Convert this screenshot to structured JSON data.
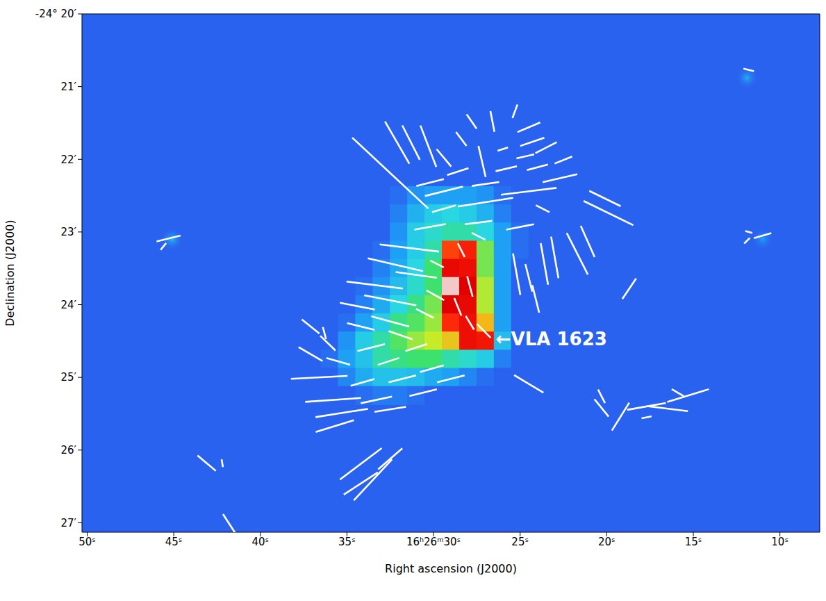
{
  "chart_data": {
    "type": "polarization_map",
    "x_label": "Right ascension (J2000)",
    "y_label": "Declination (J2000)",
    "xlim": [
      50.3,
      7.7
    ],
    "xticks": [
      {
        "value": 50,
        "label": "50ˢ"
      },
      {
        "value": 45,
        "label": "45ˢ"
      },
      {
        "value": 40,
        "label": "40ˢ"
      },
      {
        "value": 35,
        "label": "35ˢ"
      },
      {
        "value": 30,
        "label": "16ʰ26ᵐ30ˢ"
      },
      {
        "value": 25,
        "label": "25ˢ"
      },
      {
        "value": 20,
        "label": "20ˢ"
      },
      {
        "value": 15,
        "label": "15ˢ"
      },
      {
        "value": 10,
        "label": "10ˢ"
      }
    ],
    "ylim": [
      27.13,
      20
    ],
    "yticks": [
      {
        "value": 20,
        "label": "-24° 20′"
      },
      {
        "value": 21,
        "label": "21′"
      },
      {
        "value": 22,
        "label": "22′"
      },
      {
        "value": 23,
        "label": "23′"
      },
      {
        "value": 24,
        "label": "24′"
      },
      {
        "value": 25,
        "label": "25′"
      },
      {
        "value": 26,
        "label": "26′"
      },
      {
        "value": 27,
        "label": "27′"
      }
    ],
    "map": {
      "background": 0.2,
      "ra": [
        36,
        35,
        34,
        33,
        32,
        31,
        30,
        29,
        28,
        27,
        26,
        25,
        24,
        23,
        22
      ],
      "dec": [
        22.5,
        22.75,
        23.0,
        23.25,
        23.5,
        23.75,
        24.0,
        24.25,
        24.5,
        24.75,
        25.0,
        25.25
      ],
      "levels": [
        [
          0.2,
          0.2,
          0.2,
          0.2,
          0.22,
          0.28,
          0.3,
          0.3,
          0.3,
          0.28,
          0.22,
          0.2,
          0.2,
          0.2,
          0.2
        ],
        [
          0.2,
          0.2,
          0.2,
          0.2,
          0.25,
          0.33,
          0.38,
          0.4,
          0.38,
          0.33,
          0.25,
          0.2,
          0.2,
          0.2,
          0.2
        ],
        [
          0.2,
          0.2,
          0.2,
          0.2,
          0.28,
          0.38,
          0.42,
          0.45,
          0.45,
          0.4,
          0.3,
          0.22,
          0.2,
          0.2,
          0.2
        ],
        [
          0.2,
          0.2,
          0.2,
          0.22,
          0.3,
          0.38,
          0.45,
          0.8,
          0.85,
          0.55,
          0.3,
          0.22,
          0.2,
          0.2,
          0.2
        ],
        [
          0.2,
          0.2,
          0.2,
          0.25,
          0.32,
          0.4,
          0.5,
          0.92,
          0.9,
          0.55,
          0.3,
          0.2,
          0.2,
          0.2,
          0.2
        ],
        [
          0.2,
          0.2,
          0.22,
          0.28,
          0.35,
          0.42,
          0.5,
          1.0,
          0.95,
          0.6,
          0.3,
          0.2,
          0.2,
          0.2,
          0.2
        ],
        [
          0.2,
          0.2,
          0.25,
          0.32,
          0.4,
          0.48,
          0.55,
          0.95,
          0.92,
          0.6,
          0.3,
          0.2,
          0.2,
          0.2,
          0.2
        ],
        [
          0.2,
          0.22,
          0.3,
          0.38,
          0.48,
          0.52,
          0.58,
          0.82,
          0.9,
          0.7,
          0.3,
          0.2,
          0.2,
          0.2,
          0.2
        ],
        [
          0.2,
          0.28,
          0.38,
          0.45,
          0.52,
          0.58,
          0.62,
          0.68,
          0.9,
          0.88,
          0.35,
          0.2,
          0.2,
          0.2,
          0.2
        ],
        [
          0.22,
          0.3,
          0.36,
          0.45,
          0.48,
          0.5,
          0.5,
          0.45,
          0.42,
          0.38,
          0.25,
          0.2,
          0.2,
          0.2,
          0.2
        ],
        [
          0.2,
          0.26,
          0.32,
          0.36,
          0.36,
          0.35,
          0.32,
          0.3,
          0.26,
          0.22,
          0.2,
          0.2,
          0.2,
          0.2,
          0.2
        ],
        [
          0.2,
          0.2,
          0.22,
          0.24,
          0.24,
          0.22,
          0.2,
          0.2,
          0.2,
          0.2,
          0.2,
          0.2,
          0.2,
          0.2,
          0.2
        ]
      ]
    },
    "sources": [
      {
        "ra": 45.1,
        "dec": 23.1,
        "level": 0.35
      },
      {
        "ra": 11.9,
        "dec": 20.88,
        "level": 0.33
      },
      {
        "ra": 11.0,
        "dec": 23.1,
        "level": 0.3
      }
    ],
    "vectors": [
      {
        "ra": 32.5,
        "dec": 22.19,
        "angle": -43,
        "length": 1.43
      },
      {
        "ra": 32.1,
        "dec": 21.77,
        "angle": -60,
        "length": 0.67
      },
      {
        "ra": 31.3,
        "dec": 21.77,
        "angle": -63,
        "length": 0.53
      },
      {
        "ra": 30.3,
        "dec": 21.82,
        "angle": -69,
        "length": 0.61
      },
      {
        "ra": 29.4,
        "dec": 21.98,
        "angle": -50,
        "length": 0.31
      },
      {
        "ra": 28.4,
        "dec": 21.72,
        "angle": -53,
        "length": 0.24
      },
      {
        "ra": 27.8,
        "dec": 21.48,
        "angle": -55,
        "length": 0.24
      },
      {
        "ra": 27.2,
        "dec": 22.03,
        "angle": -77,
        "length": 0.44
      },
      {
        "ra": 26.6,
        "dec": 21.48,
        "angle": -79,
        "length": 0.29
      },
      {
        "ra": 25.3,
        "dec": 21.34,
        "angle": 70,
        "length": 0.2
      },
      {
        "ra": 24.5,
        "dec": 21.56,
        "angle": 23,
        "length": 0.34
      },
      {
        "ra": 24.3,
        "dec": 21.76,
        "angle": 19,
        "length": 0.35
      },
      {
        "ra": 23.5,
        "dec": 21.84,
        "angle": 27,
        "length": 0.33
      },
      {
        "ra": 24.7,
        "dec": 21.96,
        "angle": 13,
        "length": 0.25
      },
      {
        "ra": 26.0,
        "dec": 21.86,
        "angle": 18,
        "length": 0.15
      },
      {
        "ra": 28.6,
        "dec": 22.17,
        "angle": 18,
        "length": 0.31
      },
      {
        "ra": 25.8,
        "dec": 22.13,
        "angle": 13,
        "length": 0.3
      },
      {
        "ra": 24.0,
        "dec": 22.11,
        "angle": 15,
        "length": 0.3
      },
      {
        "ra": 22.5,
        "dec": 22.01,
        "angle": 22,
        "length": 0.26
      },
      {
        "ra": 22.7,
        "dec": 22.26,
        "angle": 13,
        "length": 0.49
      },
      {
        "ra": 20.1,
        "dec": 22.54,
        "angle": -26,
        "length": 0.48
      },
      {
        "ra": 19.9,
        "dec": 22.74,
        "angle": -26,
        "length": 0.76
      },
      {
        "ra": 27.0,
        "dec": 22.34,
        "angle": 8,
        "length": 0.38
      },
      {
        "ra": 24.5,
        "dec": 22.44,
        "angle": 7,
        "length": 0.77
      },
      {
        "ra": 29.4,
        "dec": 22.44,
        "angle": 14,
        "length": 0.54
      },
      {
        "ra": 30.2,
        "dec": 22.32,
        "angle": 14,
        "length": 0.39
      },
      {
        "ra": 27.0,
        "dec": 22.59,
        "angle": 9,
        "length": 0.77
      },
      {
        "ra": 29.4,
        "dec": 22.68,
        "angle": 16,
        "length": 0.34
      },
      {
        "ra": 23.7,
        "dec": 22.68,
        "angle": -27,
        "length": 0.21
      },
      {
        "ra": 30.2,
        "dec": 22.93,
        "angle": 10,
        "length": 0.44
      },
      {
        "ra": 27.4,
        "dec": 22.87,
        "angle": 7,
        "length": 0.38
      },
      {
        "ra": 25.0,
        "dec": 22.93,
        "angle": 11,
        "length": 0.39
      },
      {
        "ra": 23.6,
        "dec": 23.44,
        "angle": -80,
        "length": 0.58
      },
      {
        "ra": 23.0,
        "dec": 23.35,
        "angle": -80,
        "length": 0.58
      },
      {
        "ra": 21.7,
        "dec": 23.3,
        "angle": -63,
        "length": 0.64
      },
      {
        "ra": 21.1,
        "dec": 23.13,
        "angle": -66,
        "length": 0.47
      },
      {
        "ra": 24.5,
        "dec": 23.63,
        "angle": -76,
        "length": 0.39
      },
      {
        "ra": 24.1,
        "dec": 23.92,
        "angle": -76,
        "length": 0.39
      },
      {
        "ra": 25.2,
        "dec": 23.58,
        "angle": -80,
        "length": 0.58
      },
      {
        "ra": 18.7,
        "dec": 23.78,
        "angle": 56,
        "length": 0.34
      },
      {
        "ra": 31.4,
        "dec": 23.22,
        "angle": -7,
        "length": 0.82
      },
      {
        "ra": 32.2,
        "dec": 23.45,
        "angle": -13,
        "length": 0.78
      },
      {
        "ra": 31.0,
        "dec": 23.59,
        "angle": -8,
        "length": 0.57
      },
      {
        "ra": 33.4,
        "dec": 23.73,
        "angle": -7,
        "length": 0.78
      },
      {
        "ra": 32.5,
        "dec": 23.94,
        "angle": -11,
        "length": 0.73
      },
      {
        "ra": 34.4,
        "dec": 24.02,
        "angle": -11,
        "length": 0.49
      },
      {
        "ra": 32.5,
        "dec": 24.23,
        "angle": -15,
        "length": 0.54
      },
      {
        "ra": 31.9,
        "dec": 24.42,
        "angle": -19,
        "length": 0.35
      },
      {
        "ra": 34.2,
        "dec": 24.3,
        "angle": -14,
        "length": 0.39
      },
      {
        "ra": 30.5,
        "dec": 24.12,
        "angle": -27,
        "length": 0.27
      },
      {
        "ra": 29.9,
        "dec": 23.87,
        "angle": -29,
        "length": 0.28
      },
      {
        "ra": 29.8,
        "dec": 23.44,
        "angle": -27,
        "length": 0.21
      },
      {
        "ra": 27.9,
        "dec": 23.75,
        "angle": -75,
        "length": 0.29
      },
      {
        "ra": 28.6,
        "dec": 24.03,
        "angle": -68,
        "length": 0.26
      },
      {
        "ra": 27.9,
        "dec": 24.25,
        "angle": -59,
        "length": 0.22
      },
      {
        "ra": 27.1,
        "dec": 24.36,
        "angle": -45,
        "length": 0.27
      },
      {
        "ra": 28.4,
        "dec": 23.25,
        "angle": -63,
        "length": 0.21
      },
      {
        "ra": 27.4,
        "dec": 23.06,
        "angle": -27,
        "length": 0.21
      },
      {
        "ra": 36.1,
        "dec": 24.53,
        "angle": -44,
        "length": 0.29
      },
      {
        "ra": 37.1,
        "dec": 24.68,
        "angle": -30,
        "length": 0.38
      },
      {
        "ra": 35.5,
        "dec": 24.78,
        "angle": -16,
        "length": 0.34
      },
      {
        "ra": 36.3,
        "dec": 24.39,
        "angle": -75,
        "length": 0.17
      },
      {
        "ra": 36.6,
        "dec": 25.0,
        "angle": 3,
        "length": 0.78
      },
      {
        "ra": 34.1,
        "dec": 25.07,
        "angle": 16,
        "length": 0.34
      },
      {
        "ra": 33.6,
        "dec": 24.59,
        "angle": 14,
        "length": 0.39
      },
      {
        "ra": 32.6,
        "dec": 24.78,
        "angle": 18,
        "length": 0.31
      },
      {
        "ra": 31.0,
        "dec": 24.59,
        "angle": 18,
        "length": 0.31
      },
      {
        "ra": 30.1,
        "dec": 24.88,
        "angle": 16,
        "length": 0.34
      },
      {
        "ra": 31.8,
        "dec": 25.02,
        "angle": 14,
        "length": 0.39
      },
      {
        "ra": 35.8,
        "dec": 25.31,
        "angle": 4,
        "length": 0.77
      },
      {
        "ra": 35.3,
        "dec": 25.49,
        "angle": 9,
        "length": 0.73
      },
      {
        "ra": 33.3,
        "dec": 25.31,
        "angle": 12,
        "length": 0.44
      },
      {
        "ra": 32.5,
        "dec": 25.44,
        "angle": 9,
        "length": 0.44
      },
      {
        "ra": 35.7,
        "dec": 25.67,
        "angle": 17,
        "length": 0.55
      },
      {
        "ra": 30.6,
        "dec": 25.21,
        "angle": 14,
        "length": 0.39
      },
      {
        "ra": 29.0,
        "dec": 25.02,
        "angle": 14,
        "length": 0.39
      },
      {
        "ra": 24.5,
        "dec": 25.09,
        "angle": -31,
        "length": 0.47
      },
      {
        "ra": 34.2,
        "dec": 26.19,
        "angle": 37,
        "length": 0.72
      },
      {
        "ra": 33.5,
        "dec": 26.41,
        "angle": 47,
        "length": 0.77
      },
      {
        "ra": 34.2,
        "dec": 26.46,
        "angle": 33,
        "length": 0.56
      },
      {
        "ra": 32.5,
        "dec": 26.12,
        "angle": 41,
        "length": 0.44
      },
      {
        "ra": 43.1,
        "dec": 26.18,
        "angle": -40,
        "length": 0.33
      },
      {
        "ra": 42.2,
        "dec": 26.18,
        "angle": -80,
        "length": 0.11
      },
      {
        "ra": 41.7,
        "dec": 27.05,
        "angle": -57,
        "length": 0.4
      },
      {
        "ra": 20.3,
        "dec": 25.42,
        "angle": -51,
        "length": 0.31
      },
      {
        "ra": 19.2,
        "dec": 25.54,
        "angle": 58,
        "length": 0.45
      },
      {
        "ra": 17.7,
        "dec": 25.4,
        "angle": 10,
        "length": 0.54
      },
      {
        "ra": 16.5,
        "dec": 25.43,
        "angle": -7,
        "length": 0.57
      },
      {
        "ra": 15.3,
        "dec": 25.25,
        "angle": 17,
        "length": 0.6
      },
      {
        "ra": 15.9,
        "dec": 25.21,
        "angle": -30,
        "length": 0.19
      },
      {
        "ra": 17.7,
        "dec": 25.55,
        "angle": 11,
        "length": 0.14
      },
      {
        "ra": 20.3,
        "dec": 25.26,
        "angle": -63,
        "length": 0.21
      },
      {
        "ra": 11.8,
        "dec": 20.77,
        "angle": -14,
        "length": 0.15
      },
      {
        "ra": 45.3,
        "dec": 23.09,
        "angle": 14,
        "length": 0.34
      },
      {
        "ra": 45.6,
        "dec": 23.2,
        "angle": 51,
        "length": 0.12
      },
      {
        "ra": 11.8,
        "dec": 23.0,
        "angle": -16,
        "length": 0.1
      },
      {
        "ra": 11.0,
        "dec": 23.05,
        "angle": 16,
        "length": 0.25
      },
      {
        "ra": 11.9,
        "dec": 23.12,
        "angle": 45,
        "length": 0.11
      },
      {
        "ra": 37.1,
        "dec": 24.3,
        "angle": -39,
        "length": 0.31
      }
    ],
    "annotations": [
      {
        "text": "←VLA 1623",
        "ra": 26.4,
        "dec": 24.47
      }
    ]
  }
}
